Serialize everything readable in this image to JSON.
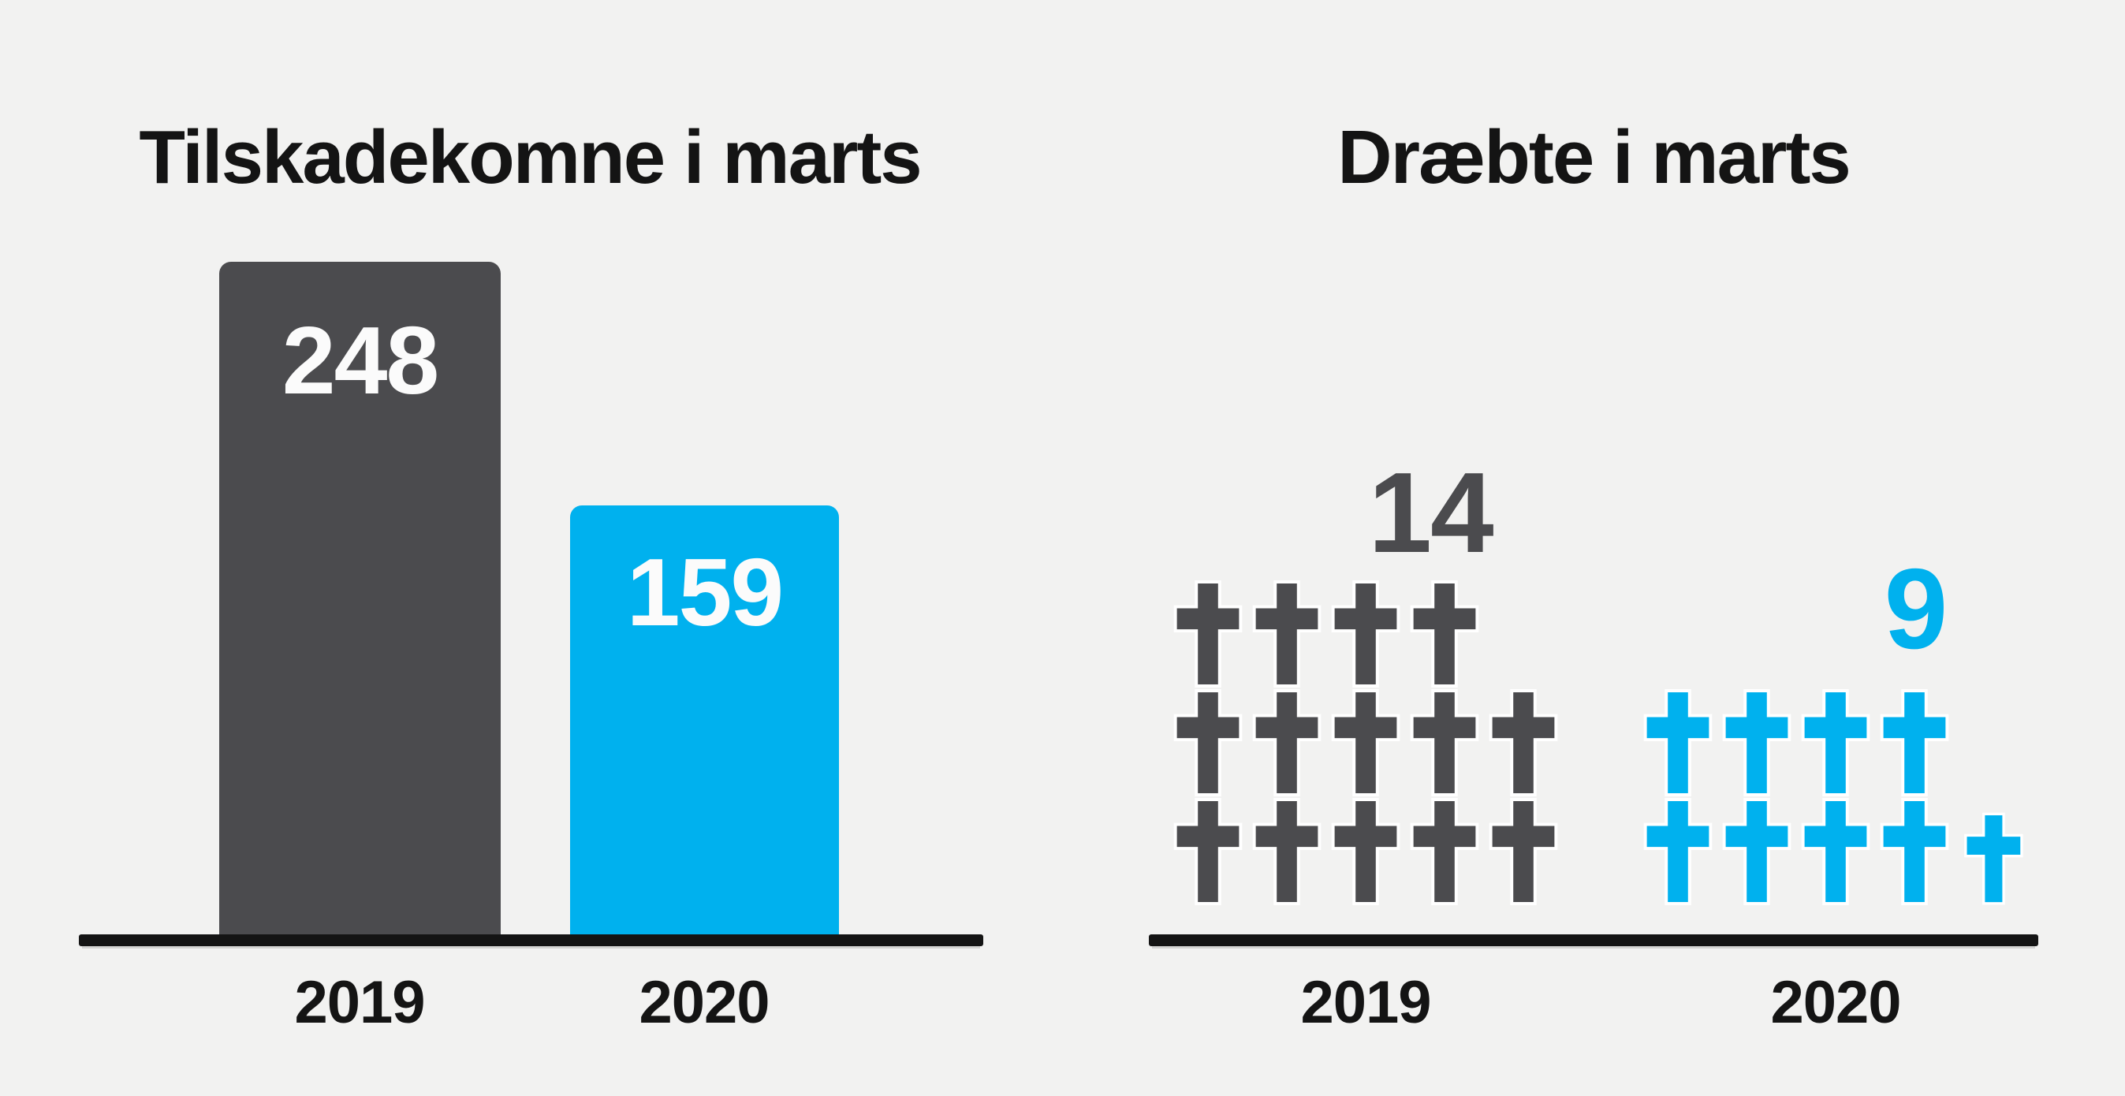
{
  "background": "#f2f2f1",
  "colors": {
    "dark": "#4b4b4e",
    "blue": "#00b1ee",
    "axis": "#141414",
    "text": "#141414",
    "value_text": "#fbfbfb"
  },
  "left_chart": {
    "title": "Tilskadekomne i marts",
    "bars": [
      {
        "year": "2019",
        "value": 248,
        "value_label": "248",
        "color_key": "dark"
      },
      {
        "year": "2020",
        "value": 159,
        "value_label": "159",
        "color_key": "blue"
      }
    ]
  },
  "right_chart": {
    "title": "Dræbte i marts",
    "groups": [
      {
        "year": "2019",
        "value": 14,
        "count_label": "14",
        "color_key": "dark",
        "rows": [
          4,
          5,
          5
        ],
        "small_last": false
      },
      {
        "year": "2020",
        "value": 9,
        "count_label": "9",
        "color_key": "blue",
        "rows": [
          4,
          5
        ],
        "small_last": true
      }
    ]
  },
  "chart_data": [
    {
      "type": "bar",
      "title": "Tilskadekomne i marts",
      "categories": [
        "2019",
        "2020"
      ],
      "values": [
        248,
        159
      ],
      "bar_colors": [
        "#4b4b4e",
        "#00b1ee"
      ],
      "xlabel": "",
      "ylabel": "",
      "ylim": [
        0,
        260
      ],
      "grid": false,
      "legend": "none",
      "data_labels": "inside top, white bold"
    },
    {
      "type": "pictogram",
      "title": "Dræbte i marts",
      "categories": [
        "2019",
        "2020"
      ],
      "values": [
        14,
        9
      ],
      "icon": "latin-cross",
      "icon_colors": [
        "#4b4b4e",
        "#00b1ee"
      ],
      "rows_layout": [
        [
          4,
          5,
          5
        ],
        [
          4,
          5
        ]
      ],
      "xlabel": "",
      "ylabel": "",
      "grid": false,
      "legend": "none",
      "data_labels": "count above group"
    }
  ]
}
